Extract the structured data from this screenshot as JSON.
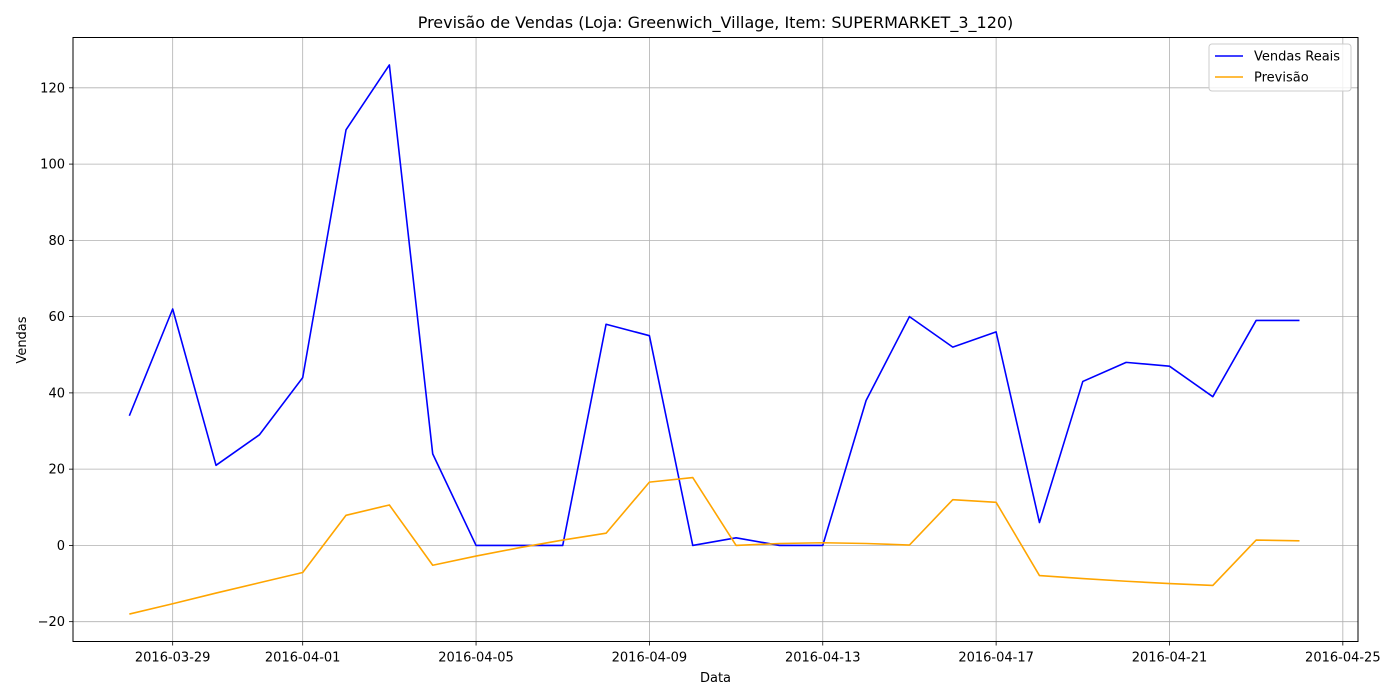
{
  "chart_data": {
    "type": "line",
    "title": "Previsão de Vendas (Loja: Greenwich_Village, Item: SUPERMARKET_3_120)",
    "xlabel": "Data",
    "ylabel": "Vendas",
    "x": [
      "2016-03-28",
      "2016-03-29",
      "2016-03-30",
      "2016-03-31",
      "2016-04-01",
      "2016-04-02",
      "2016-04-03",
      "2016-04-04",
      "2016-04-05",
      "2016-04-06",
      "2016-04-07",
      "2016-04-08",
      "2016-04-09",
      "2016-04-10",
      "2016-04-11",
      "2016-04-12",
      "2016-04-13",
      "2016-04-14",
      "2016-04-15",
      "2016-04-16",
      "2016-04-17",
      "2016-04-18",
      "2016-04-19",
      "2016-04-20",
      "2016-04-21",
      "2016-04-22",
      "2016-04-23",
      "2016-04-24"
    ],
    "series": [
      {
        "name": "Vendas Reais",
        "color": "#0000ff",
        "values": [
          34,
          62,
          21,
          29,
          44,
          109,
          126,
          24,
          0,
          0,
          0,
          58,
          55,
          0,
          2,
          0,
          0,
          38,
          60,
          52,
          56,
          6,
          43,
          48,
          47,
          39,
          59,
          59
        ]
      },
      {
        "name": "Previsão",
        "color": "#ffa500",
        "values": [
          -18,
          -15.3,
          -12.5,
          -9.8,
          -7.1,
          7.9,
          10.6,
          -5.2,
          -2.8,
          -0.6,
          1.4,
          3.2,
          16.6,
          17.8,
          0,
          0.5,
          0.7,
          0.5,
          0.1,
          12,
          11.3,
          -7.9,
          -8.7,
          -9.4,
          -10,
          -10.5,
          1.4,
          1.2
        ]
      }
    ],
    "xticks": [
      "2016-03-29",
      "2016-04-01",
      "2016-04-05",
      "2016-04-09",
      "2016-04-13",
      "2016-04-17",
      "2016-04-21",
      "2016-04-25"
    ],
    "yticks": [
      -20,
      0,
      20,
      40,
      60,
      80,
      100,
      120
    ],
    "xlim": [
      "2016-03-26 16:48",
      "2016-04-25 08:24"
    ],
    "ylim": [
      -25.2,
      133.2
    ],
    "grid": true,
    "legend": "top-right"
  }
}
